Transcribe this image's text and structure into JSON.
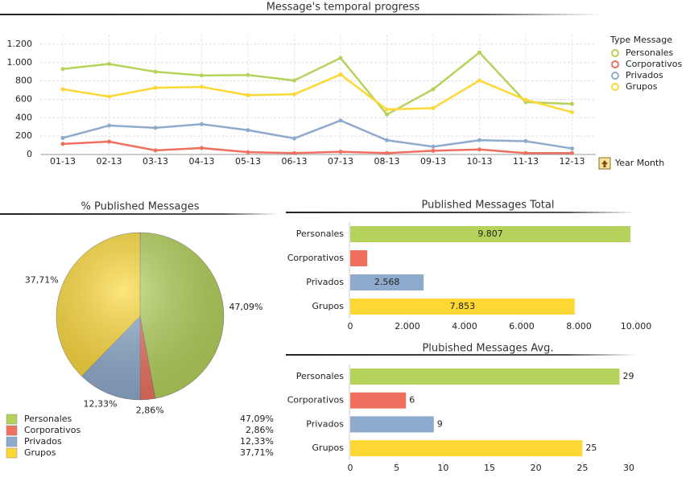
{
  "chart_data": [
    {
      "type": "line",
      "title": "Message's temporal progress",
      "categories": [
        "01-13",
        "02-13",
        "03-13",
        "04-13",
        "05-13",
        "06-13",
        "07-13",
        "08-13",
        "09-13",
        "10-13",
        "11-13",
        "12-13"
      ],
      "series": [
        {
          "name": "Personales",
          "color": "#b5d35a",
          "values": [
            930,
            985,
            900,
            860,
            865,
            805,
            1050,
            435,
            710,
            1110,
            570,
            550
          ]
        },
        {
          "name": "Corporativos",
          "color": "#f0705f",
          "values": [
            115,
            140,
            45,
            70,
            25,
            15,
            30,
            15,
            40,
            55,
            15,
            15
          ]
        },
        {
          "name": "Privados",
          "color": "#8eaacc",
          "values": [
            180,
            315,
            290,
            330,
            265,
            175,
            370,
            155,
            85,
            155,
            145,
            65
          ]
        },
        {
          "name": "Grupos",
          "color": "#fdd835",
          "values": [
            710,
            630,
            725,
            735,
            645,
            655,
            870,
            490,
            505,
            805,
            595,
            460
          ]
        }
      ],
      "ylim": [
        0,
        1300
      ],
      "yticks": [
        0,
        200,
        400,
        600,
        800,
        {
          "value": 1000,
          "label": "1.000"
        },
        {
          "value": 1200,
          "label": "1.200"
        }
      ],
      "grid": true,
      "legend_title": "Type Message",
      "x_label": "Year Month"
    },
    {
      "type": "pie",
      "title": "% Published Messages",
      "categories": [
        "Personales",
        "Corporativos",
        "Privados",
        "Grupos"
      ],
      "values": [
        47.09,
        2.86,
        12.33,
        37.71
      ],
      "value_labels": [
        "47,09%",
        "2,86%",
        "12,33%",
        "37,71%"
      ],
      "colors": [
        "#b5d35a",
        "#f0705f",
        "#8eaacc",
        "#fdd835"
      ]
    },
    {
      "type": "hbar",
      "title": "Published Messages Total",
      "categories": [
        "Personales",
        "Corporativos",
        "Privados",
        "Grupos"
      ],
      "values": [
        9807,
        596,
        2568,
        7853
      ],
      "value_labels": [
        "9.807",
        null,
        "2.568",
        "7.853"
      ],
      "label_position": "inside",
      "colors": [
        "#b5d35a",
        "#f0705f",
        "#8eaacc",
        "#fdd835"
      ],
      "xlim": [
        0,
        10000
      ],
      "xticks": [
        0,
        {
          "value": 2000,
          "label": "2.000"
        },
        {
          "value": 4000,
          "label": "4.000"
        },
        {
          "value": 6000,
          "label": "6.000"
        },
        {
          "value": 8000,
          "label": "8.000"
        },
        {
          "value": 10000,
          "label": "10.000"
        }
      ]
    },
    {
      "type": "hbar",
      "title": "Plubished Messages Avg.",
      "categories": [
        "Personales",
        "Corporativos",
        "Privados",
        "Grupos"
      ],
      "values": [
        29,
        6,
        9,
        25
      ],
      "label_position": "outside",
      "colors": [
        "#b5d35a",
        "#f0705f",
        "#8eaacc",
        "#fdd835"
      ],
      "xlim": [
        0,
        30
      ],
      "xticks": [
        0,
        5,
        10,
        15,
        20,
        25,
        30
      ]
    }
  ]
}
